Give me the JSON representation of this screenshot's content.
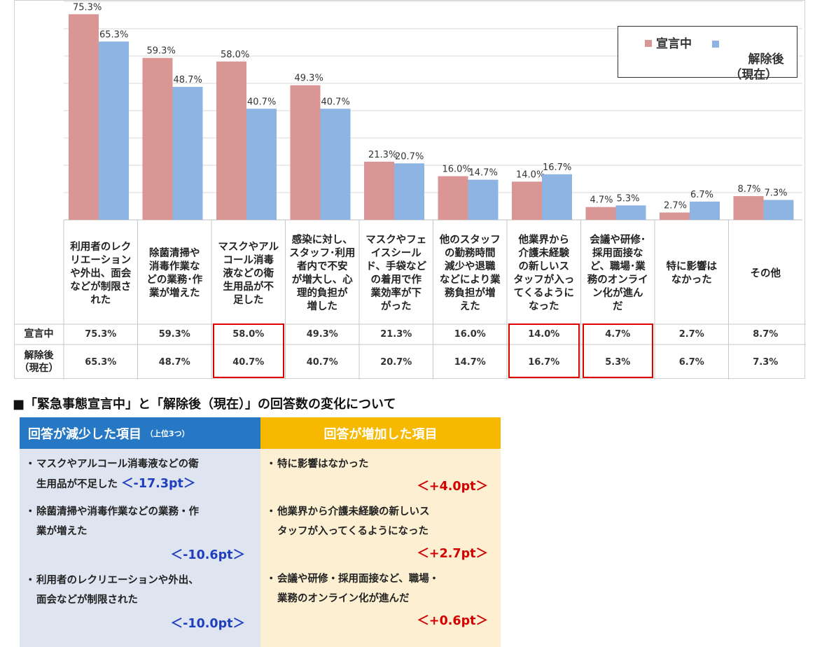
{
  "chart_data": {
    "type": "bar",
    "categories": [
      "利用者のレクリエーションや外出、面会などが制限された",
      "除菌清掃や消毒作業などの業務・作業が増えた",
      "マスクやアルコール消毒液などの衛生用品が不足した",
      "感染に対し、スタッフ・利用者内で不安が増大し、心理的負担が増した",
      "マスクやフェイスシールド、手袋などの着用で作業効率が下がった",
      "他のスタッフの勤務時間減少や退職などにより業務負担が増えた",
      "他業界から介護未経験の新しいスタッフが入ってくるようになった",
      "会議や研修・採用面接など、職場・業務のオンライン化が進んだ",
      "特に影響はなかった",
      "その他"
    ],
    "category_lines": [
      [
        "利用者のレク",
        "リエーション",
        "や外出、面会",
        "などが制限さ",
        "れた"
      ],
      [
        "除菌清掃や",
        "消毒作業な",
        "どの業務･作",
        "業が増えた"
      ],
      [
        "マスクやアル",
        "コール消毒",
        "液などの衛",
        "生用品が不",
        "足した"
      ],
      [
        "感染に対し、",
        "スタッフ･利用",
        "者内で不安",
        "が増大し、心",
        "理的負担が",
        "増した"
      ],
      [
        "マスクやフェ",
        "イスシール",
        "ド、手袋など",
        "の着用で作",
        "業効率が下",
        "がった"
      ],
      [
        "他のスタッフ",
        "の勤務時間",
        "減少や退職",
        "などにより業",
        "務負担が増",
        "えた"
      ],
      [
        "他業界から",
        "介護未経験",
        "の新しいス",
        "タッフが入っ",
        "てくるように",
        "なった"
      ],
      [
        "会議や研修･",
        "採用面接な",
        "ど、職場･業",
        "務のオンライ",
        "ン化が進ん",
        "だ"
      ],
      [
        "特に影響は",
        "なかった"
      ],
      [
        "その他"
      ]
    ],
    "series": [
      {
        "name": "宣言中",
        "values": [
          75.3,
          59.3,
          58.0,
          49.3,
          21.3,
          16.0,
          14.0,
          4.7,
          2.7,
          8.7
        ]
      },
      {
        "name": "解除後（現在）",
        "values": [
          65.3,
          48.7,
          40.7,
          40.7,
          20.7,
          14.7,
          16.7,
          5.3,
          6.7,
          7.3
        ]
      }
    ],
    "value_labels": [
      [
        "75.3%",
        "59.3%",
        "58.0%",
        "49.3%",
        "21.3%",
        "16.0%",
        "14.0%",
        "4.7%",
        "2.7%",
        "8.7%"
      ],
      [
        "65.3%",
        "48.7%",
        "40.7%",
        "40.7%",
        "20.7%",
        "14.7%",
        "16.7%",
        "5.3%",
        "6.7%",
        "7.3%"
      ]
    ],
    "colors": [
      "#d99694",
      "#8eb4e3"
    ],
    "ylim": [
      0,
      80
    ],
    "gridlines": true,
    "legend": {
      "position": "top-right",
      "items": [
        "宣言中",
        "解除後\n（現在）"
      ]
    },
    "table_rows": [
      "宣言中",
      "解除後\n（現在）"
    ],
    "highlighted_columns": [
      2,
      6,
      7
    ]
  },
  "summary": {
    "title": "■「緊急事態宣言中」と「解除後（現在）」の回答数の変化について",
    "decreased": {
      "header": "回答が減少した項目",
      "header_sub": "（上位3つ）",
      "items": [
        {
          "lines": [
            "マスクやアルコール消毒液などの衛",
            "生用品が不足した"
          ],
          "pt": "＜-17.3pt＞"
        },
        {
          "lines": [
            "除菌清掃や消毒作業などの業務・作",
            "業が増えた"
          ],
          "pt": "＜-10.6pt＞"
        },
        {
          "lines": [
            "利用者のレクリエーションや外出、",
            "面会などが制限された"
          ],
          "pt": "＜-10.0pt＞"
        }
      ]
    },
    "increased": {
      "header": "回答が増加した項目",
      "items": [
        {
          "lines": [
            "特に影響はなかった"
          ],
          "pt": "＜+4.0pt＞"
        },
        {
          "lines": [
            "他業界から介護未経験の新しいス",
            "タッフが入ってくるようになった"
          ],
          "pt": "＜+2.7pt＞"
        },
        {
          "lines": [
            "会議や研修・採用面接など、職場・",
            "業務のオンライン化が進んだ"
          ],
          "pt": "＜+0.6pt＞"
        }
      ]
    }
  }
}
